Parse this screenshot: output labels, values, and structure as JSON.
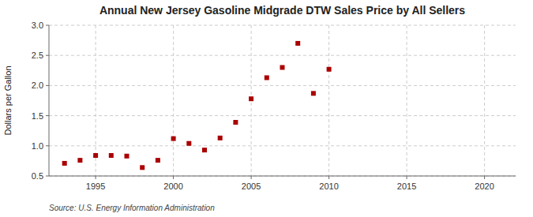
{
  "chart_data": {
    "type": "scatter",
    "title": "Annual New Jersey Gasoline Midgrade DTW Sales Price by All Sellers",
    "y_label": "Dollars per Gallon",
    "source": "Source: U.S. Energy Information Administration",
    "x": [
      1993,
      1994,
      1995,
      1996,
      1997,
      1998,
      1999,
      2000,
      2001,
      2002,
      2003,
      2004,
      2005,
      2006,
      2007,
      2008,
      2009,
      2010
    ],
    "values": [
      0.71,
      0.76,
      0.84,
      0.84,
      0.83,
      0.64,
      0.76,
      1.12,
      1.04,
      0.93,
      1.13,
      1.39,
      1.78,
      2.13,
      2.3,
      2.7,
      1.87,
      2.27
    ],
    "xlim": [
      1992,
      2022
    ],
    "ylim": [
      0.5,
      3.0
    ],
    "xticks": [
      1995,
      2000,
      2005,
      2010,
      2015,
      2020
    ],
    "yticks": [
      0.5,
      {
        "value": 1.0,
        "label": "1.0"
      },
      1.5,
      {
        "value": 2.0,
        "label": "2.0"
      },
      2.5,
      {
        "value": 3.0,
        "label": "3.0"
      }
    ],
    "color": "#aa0000",
    "marker": "square",
    "grid": true
  }
}
